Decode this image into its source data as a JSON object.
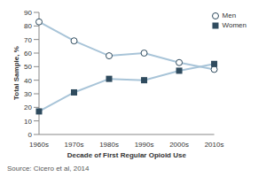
{
  "chart_data": {
    "type": "line",
    "x_label": "Decade of First Regular Opioid Use",
    "y_label": "Total Sample, %",
    "annotations": [
      "Source: Cicero et al, 2014"
    ],
    "categories": [
      "1960s",
      "1970s",
      "1980s",
      "1990s",
      "2000s",
      "2010s"
    ],
    "series": [
      {
        "name": "Men",
        "color": "#2f4b5e",
        "marker": "open_circle",
        "values": [
          83,
          69,
          58,
          60,
          53,
          48
        ]
      },
      {
        "name": "Women",
        "color": "#2f4b5e",
        "marker": "square",
        "values": [
          17,
          31,
          41,
          40,
          47,
          52
        ]
      }
    ],
    "ylim": [
      0,
      90
    ],
    "yticks": [
      0,
      10,
      20,
      30,
      40,
      50,
      60,
      70,
      80,
      90
    ],
    "grid": false,
    "legend": "upper right"
  }
}
